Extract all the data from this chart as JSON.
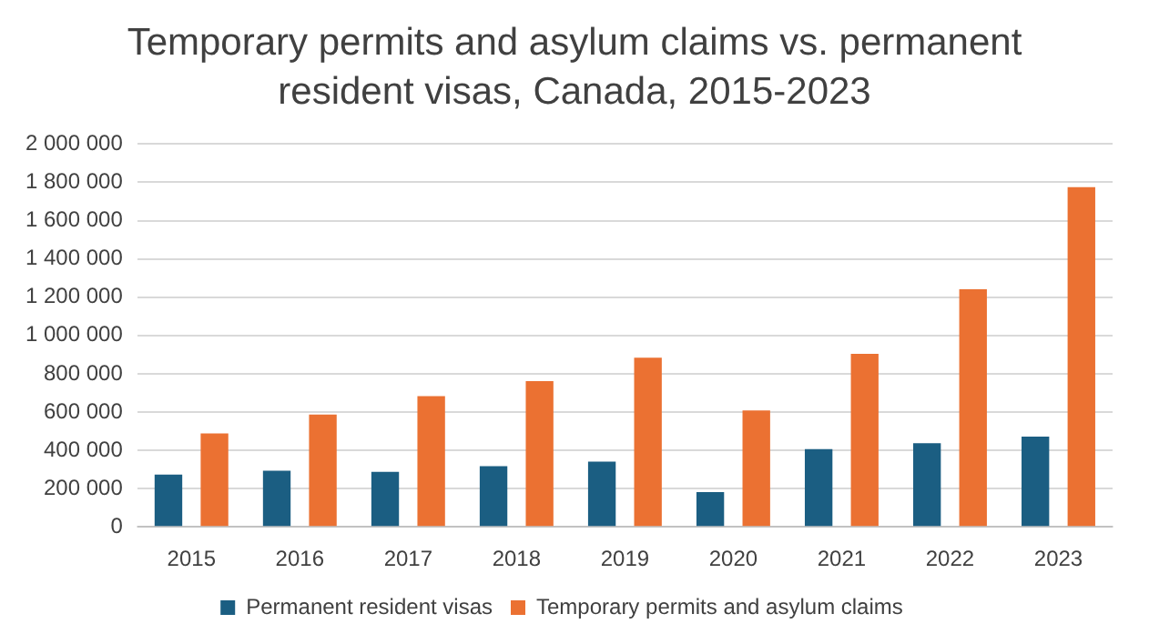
{
  "chart_data": {
    "type": "bar",
    "title": "Temporary permits and asylum claims vs. permanent resident visas, Canada, 2015-2023",
    "categories": [
      "2015",
      "2016",
      "2017",
      "2018",
      "2019",
      "2020",
      "2021",
      "2022",
      "2023"
    ],
    "series": [
      {
        "name": "Permanent resident visas",
        "color": "#1b5e82",
        "values": [
          273000,
          293000,
          287000,
          317000,
          341000,
          181000,
          406000,
          437000,
          471000
        ]
      },
      {
        "name": "Temporary permits and asylum claims",
        "color": "#eb7132",
        "values": [
          488000,
          587000,
          683000,
          761000,
          884000,
          608000,
          904000,
          1242000,
          1775000
        ]
      }
    ],
    "ylim": [
      0,
      2000000
    ],
    "yticks": [
      0,
      {
        "value": 200000,
        "label": "200 000"
      },
      {
        "value": 400000,
        "label": "400 000"
      },
      {
        "value": 600000,
        "label": "600 000"
      },
      {
        "value": 800000,
        "label": "800 000"
      },
      {
        "value": 1000000,
        "label": "1 000 000"
      },
      {
        "value": 1200000,
        "label": "1 200 000"
      },
      {
        "value": 1400000,
        "label": "1 400 000"
      },
      {
        "value": 1600000,
        "label": "1 600 000"
      },
      {
        "value": 1800000,
        "label": "1 800 000"
      },
      {
        "value": 2000000,
        "label": "2 000 000"
      }
    ],
    "grid": "y",
    "legend": "bottom"
  }
}
